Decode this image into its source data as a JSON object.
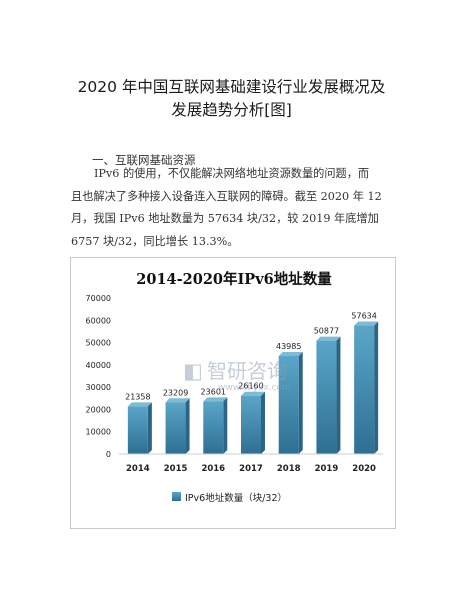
{
  "document": {
    "title_lines": [
      "2020 年中国互联网基础建设行业发展概况及",
      "发展趋势分析[图]"
    ],
    "section_heading": "一、互联网基础资源",
    "paragraph_lines": [
      "IPv6 的使用，不仅能解决网络地址资源数量的问题，而",
      "且也解决了多种接入设备连入互联网的障碍。截至 2020 年 12",
      "月，我国 IPv6 地址数量为 57634 块/32，较 2019 年底增加",
      "6757 块/32，同比增长 13.3%。"
    ]
  },
  "watermark": {
    "text": "智研咨询",
    "subtext": "www.chyxx.com"
  },
  "chart_data": {
    "type": "bar",
    "title": "2014-2020年IPv6地址数量",
    "categories": [
      "2014",
      "2015",
      "2016",
      "2017",
      "2018",
      "2019",
      "2020"
    ],
    "series": [
      {
        "name": "IPv6地址数量（块/32）",
        "values": [
          21358,
          23209,
          23601,
          26160,
          43985,
          50877,
          57634
        ]
      }
    ],
    "data_labels": [
      "21358",
      "23209",
      "23601",
      "26160",
      "43985",
      "50877",
      "57634"
    ],
    "y_ticks": [
      "0",
      "10000",
      "20000",
      "30000",
      "40000",
      "50000",
      "60000",
      "70000"
    ],
    "ylim": [
      0,
      70000
    ],
    "grid": false,
    "legend_position": "bottom-left",
    "colors": {
      "bar_top": "#5aa6c8",
      "bar_bottom": "#2e6f93",
      "bar_side": "#2a6486"
    }
  }
}
